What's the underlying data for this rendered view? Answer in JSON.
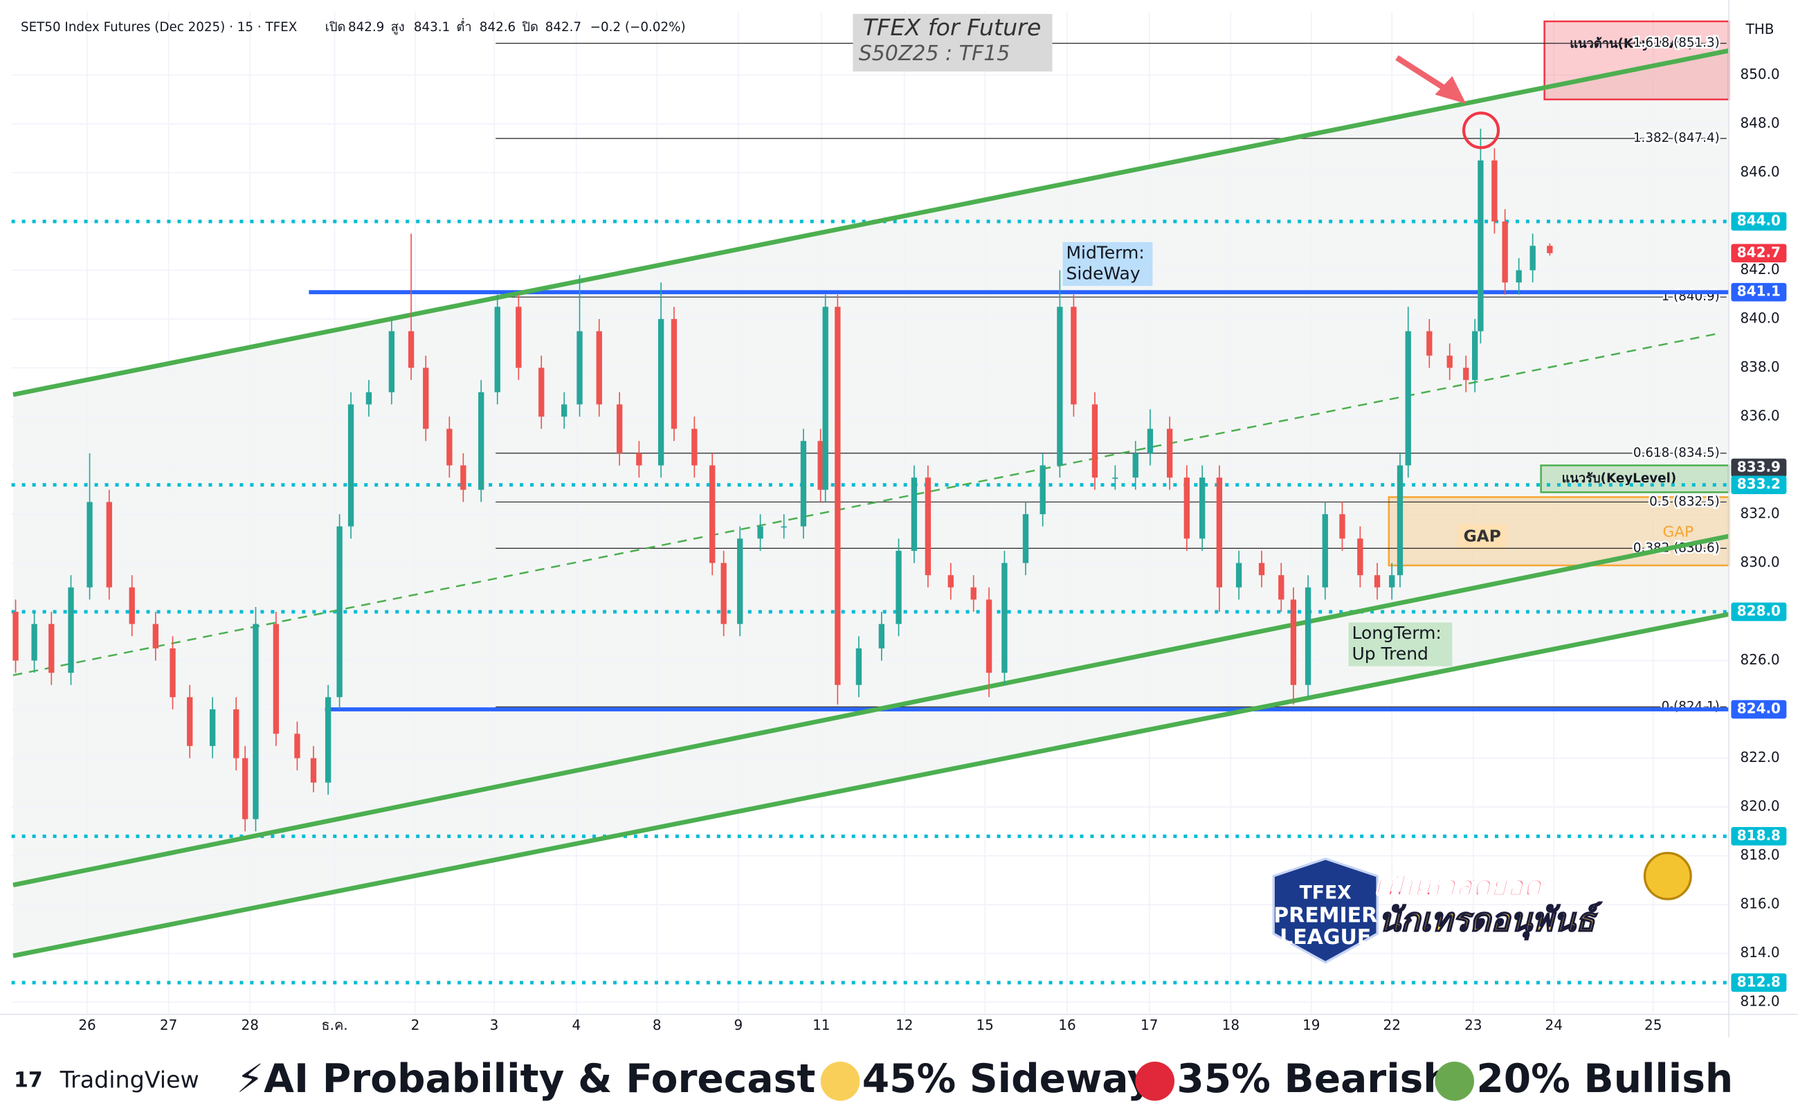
{
  "chart_data": {
    "type": "candlestick",
    "title": "TFEX for Future",
    "subtitle": "S50Z25 : TF15",
    "symbol": "SET50 Index Futures (Dec 2025) · 15 · TFEX",
    "ohlc_header": [
      {
        "label": "เปิด",
        "value": "842.9"
      },
      {
        "label": "สูง",
        "value": "843.1"
      },
      {
        "label": "ต่ำ",
        "value": "842.6"
      },
      {
        "label": "ปิด",
        "value": "842.7"
      }
    ],
    "change": "−0.2 (−0.02%)",
    "currency": "THB",
    "up_color": "#26a69a",
    "down_color": "#ef5350",
    "x": [
      -0.88,
      -0.65,
      -0.44,
      -0.2,
      0.03,
      0.27,
      0.55,
      0.84,
      1.05,
      1.26,
      1.54,
      1.83,
      1.94,
      2.07,
      2.32,
      2.58,
      2.78,
      2.96,
      3.1,
      3.24,
      3.46,
      3.74,
      3.98,
      4.16,
      4.45,
      4.62,
      4.84,
      5.04,
      5.3,
      5.58,
      5.86,
      6.05,
      6.29,
      6.54,
      6.78,
      7.05,
      7.21,
      7.46,
      7.68,
      7.82,
      8.02,
      8.27,
      8.56,
      8.8,
      9.01,
      9.07,
      9.22,
      9.48,
      9.76,
      9.97,
      10.16,
      10.33,
      10.61,
      10.89,
      11.08,
      11.27,
      11.53,
      11.74,
      11.95,
      12.12,
      12.38,
      12.63,
      12.88,
      13.06,
      13.3,
      13.51,
      13.7,
      13.91,
      14.15,
      14.43,
      14.67,
      14.82,
      15.0,
      15.21,
      15.42,
      15.64,
      15.85,
      16.03,
      16.13,
      16.23,
      16.49,
      16.74,
      16.94,
      17.05,
      17.12,
      17.29,
      17.42,
      17.59,
      17.76,
      17.97
    ],
    "open": [
      828.0,
      826.0,
      827.5,
      825.5,
      829.0,
      832.5,
      829.0,
      827.5,
      826.5,
      824.5,
      822.5,
      824.0,
      822.0,
      819.5,
      827.5,
      823.0,
      822.0,
      821.0,
      824.5,
      831.5,
      836.5,
      837.0,
      839.5,
      838.0,
      835.5,
      834.0,
      833.0,
      837.0,
      840.5,
      838.0,
      836.0,
      836.5,
      839.5,
      836.5,
      834.5,
      834.0,
      840.0,
      835.5,
      834.0,
      830.0,
      827.5,
      831.0,
      831.5,
      831.5,
      835.0,
      833.0,
      840.5,
      825.0,
      826.5,
      827.5,
      830.5,
      833.5,
      829.5,
      829.0,
      828.5,
      825.5,
      830.0,
      832.0,
      834.0,
      840.5,
      836.5,
      833.5,
      833.5,
      834.5,
      835.5,
      833.5,
      831.0,
      833.5,
      829.0,
      830.0,
      829.5,
      828.5,
      825.0,
      829.0,
      832.0,
      831.0,
      829.5,
      829.0,
      829.5,
      834.0,
      839.5,
      838.5,
      838.0,
      837.5,
      839.5,
      846.5,
      844.0,
      841.5,
      842.0,
      843.0
    ],
    "high": [
      828.5,
      828.0,
      828.0,
      829.5,
      834.5,
      833.0,
      829.5,
      828.0,
      827.0,
      825.0,
      824.5,
      824.5,
      822.5,
      828.2,
      828.0,
      823.5,
      822.5,
      825.0,
      832.0,
      837.0,
      837.5,
      840.0,
      843.5,
      838.5,
      836.0,
      834.5,
      837.5,
      841.0,
      841.0,
      838.5,
      837.0,
      841.8,
      840.0,
      837.0,
      835.0,
      841.5,
      840.5,
      836.0,
      834.5,
      830.5,
      831.5,
      832.0,
      832.0,
      835.5,
      835.5,
      841.0,
      841.0,
      827.0,
      828.0,
      831.0,
      834.0,
      834.0,
      830.0,
      829.5,
      829.0,
      830.5,
      832.5,
      834.5,
      842.0,
      841.0,
      837.0,
      834.0,
      835.0,
      836.3,
      836.0,
      834.0,
      834.0,
      834.0,
      830.5,
      830.5,
      830.0,
      829.0,
      829.5,
      832.5,
      832.5,
      831.5,
      830.0,
      830.0,
      834.5,
      840.5,
      840.0,
      839.0,
      838.5,
      840.0,
      847.8,
      847.0,
      844.5,
      842.5,
      843.5,
      843.1
    ],
    "low": [
      825.5,
      825.5,
      825.0,
      825.0,
      828.5,
      828.5,
      827.0,
      826.0,
      824.0,
      822.0,
      822.0,
      821.5,
      819.0,
      819.0,
      822.5,
      821.5,
      820.6,
      820.5,
      824.0,
      831.0,
      836.0,
      836.5,
      837.5,
      835.0,
      833.5,
      832.5,
      832.5,
      836.5,
      837.5,
      835.5,
      835.5,
      836.0,
      836.0,
      834.0,
      833.5,
      833.5,
      835.0,
      833.5,
      829.5,
      827.0,
      827.0,
      830.5,
      831.0,
      831.0,
      832.5,
      832.5,
      824.2,
      824.5,
      826.0,
      827.0,
      830.0,
      829.0,
      828.5,
      828.0,
      824.5,
      825.0,
      829.5,
      831.5,
      833.5,
      836.0,
      833.0,
      833.0,
      833.0,
      834.0,
      833.0,
      830.5,
      830.5,
      828.0,
      828.5,
      829.0,
      828.0,
      824.2,
      824.5,
      828.5,
      830.5,
      829.0,
      828.5,
      828.5,
      829.0,
      833.5,
      838.0,
      837.5,
      837.0,
      837.0,
      839.0,
      843.5,
      841.0,
      841.0,
      841.5,
      842.6
    ],
    "close": [
      826.0,
      827.5,
      825.5,
      829.0,
      832.5,
      829.0,
      827.5,
      826.5,
      824.5,
      822.5,
      824.0,
      822.0,
      819.5,
      827.5,
      823.0,
      822.0,
      821.0,
      824.5,
      831.5,
      836.5,
      837.0,
      839.5,
      838.0,
      835.5,
      834.0,
      833.0,
      837.0,
      840.5,
      838.0,
      836.0,
      836.5,
      839.5,
      836.5,
      834.5,
      834.0,
      840.0,
      835.5,
      834.0,
      830.0,
      827.5,
      831.0,
      831.5,
      831.5,
      835.0,
      833.0,
      840.5,
      825.0,
      826.5,
      827.5,
      830.5,
      833.5,
      829.5,
      829.0,
      828.5,
      825.5,
      830.0,
      832.0,
      834.0,
      840.5,
      836.5,
      833.5,
      833.5,
      834.5,
      835.5,
      833.5,
      831.0,
      833.5,
      829.0,
      830.0,
      829.5,
      828.5,
      825.0,
      829.0,
      832.0,
      831.0,
      829.5,
      829.0,
      829.5,
      834.0,
      839.5,
      838.5,
      838.0,
      837.5,
      839.5,
      846.5,
      844.0,
      841.5,
      842.0,
      843.0,
      842.7
    ],
    "xlim": [
      -0.93,
      20.17
    ],
    "xticks": [
      {
        "value": 0,
        "label": "26"
      },
      {
        "value": 1,
        "label": "27"
      },
      {
        "value": 2,
        "label": "28"
      },
      {
        "value": 3.04,
        "label": "ธ.ค."
      },
      {
        "value": 4.03,
        "label": "2"
      },
      {
        "value": 5.0,
        "label": "3"
      },
      {
        "value": 6.01,
        "label": "4"
      },
      {
        "value": 7.0,
        "label": "8"
      },
      {
        "value": 8.0,
        "label": "9"
      },
      {
        "value": 9.02,
        "label": "11"
      },
      {
        "value": 10.04,
        "label": "12"
      },
      {
        "value": 11.03,
        "label": "15"
      },
      {
        "value": 12.04,
        "label": "16"
      },
      {
        "value": 13.05,
        "label": "17"
      },
      {
        "value": 14.05,
        "label": "18"
      },
      {
        "value": 15.04,
        "label": "19"
      },
      {
        "value": 16.03,
        "label": "22"
      },
      {
        "value": 17.03,
        "label": "23"
      },
      {
        "value": 18.02,
        "label": "24"
      },
      {
        "value": 19.24,
        "label": "25"
      }
    ],
    "ylim": [
      811.5,
      852.6
    ],
    "yticks": [
      {
        "value": 812,
        "label": "812.0"
      },
      {
        "value": 814,
        "label": "814.0"
      },
      {
        "value": 816,
        "label": "816.0"
      },
      {
        "value": 818,
        "label": "818.0"
      },
      {
        "value": 820,
        "label": "820.0"
      },
      {
        "value": 822,
        "label": "822.0"
      },
      {
        "value": 824,
        "label": "824.0"
      },
      {
        "value": 826,
        "label": "826.0"
      },
      {
        "value": 828,
        "label": "828.0"
      },
      {
        "value": 830,
        "label": "830.0"
      },
      {
        "value": 832,
        "label": "832.0"
      },
      {
        "value": 834,
        "label": "834.0"
      },
      {
        "value": 836,
        "label": "836.0"
      },
      {
        "value": 838,
        "label": "838.0"
      },
      {
        "value": 840,
        "label": "840.0"
      },
      {
        "value": 842,
        "label": "842.0"
      },
      {
        "value": 844,
        "label": "844.0"
      },
      {
        "value": 846,
        "label": "846.0"
      },
      {
        "value": 848,
        "label": "848.0"
      },
      {
        "value": 850,
        "label": "850.0"
      }
    ],
    "fib_levels": [
      {
        "value": 851.3,
        "label": "1.618 (851.3)"
      },
      {
        "value": 847.4,
        "label": "1.382 (847.4)"
      },
      {
        "value": 840.9,
        "label": "1 (840.9)"
      },
      {
        "value": 834.5,
        "label": "0.618 (834.5)"
      },
      {
        "value": 832.5,
        "label": "0.5 (832.5)"
      },
      {
        "value": 830.6,
        "label": "0.382 (830.6)"
      },
      {
        "value": 824.1,
        "label": "0 (824.1)"
      }
    ],
    "key_lines": [
      841.1,
      824.0
    ],
    "dotted_levels": [
      844.0,
      833.2,
      828.0,
      818.8,
      812.8
    ],
    "trend_lines": [
      {
        "x": [
          -0.91,
          20.17
        ],
        "y": [
          836.9,
          851.0
        ],
        "style": "solid"
      },
      {
        "x": [
          -0.91,
          20.03
        ],
        "y": [
          825.4,
          839.4
        ],
        "style": "dashed"
      },
      {
        "x": [
          -0.91,
          20.17
        ],
        "y": [
          816.8,
          831.1
        ],
        "style": "solid"
      },
      {
        "x": [
          -0.91,
          20.17
        ],
        "y": [
          813.9,
          827.9
        ],
        "style": "solid"
      }
    ],
    "zones": [
      {
        "label": "แนวต้าน(KeyLevel)",
        "ylim": [
          849.0,
          852.2
        ],
        "color": "#f23645"
      },
      {
        "label": "แนวรับ(KeyLevel)",
        "ylim": [
          832.9,
          834.0
        ],
        "color": "#4caf50"
      },
      {
        "label": "GAP",
        "ylim": [
          829.9,
          832.7
        ],
        "color": "#f7a531"
      }
    ],
    "gap_note": "GAP",
    "annotations": [
      {
        "lines": [
          "MidTerm:",
          "SideWay"
        ],
        "color": "#bbdefb"
      },
      {
        "lines": [
          "LongTerm:",
          "Up Trend"
        ],
        "color": "#c8e6c9"
      }
    ],
    "price_tags": [
      {
        "value": 844.0,
        "label": "844.0",
        "color": "#00bcd4"
      },
      {
        "value": 842.7,
        "label": "842.7",
        "color": "#f23645"
      },
      {
        "value": 841.1,
        "label": "841.1",
        "color": "#2962ff"
      },
      {
        "value": 833.9,
        "label": "833.9",
        "color": "#363a45"
      },
      {
        "value": 833.2,
        "label": "833.2",
        "color": "#00bcd4"
      },
      {
        "value": 828.0,
        "label": "828.0",
        "color": "#00bcd4"
      },
      {
        "value": 824.0,
        "label": "824.0",
        "color": "#2962ff"
      },
      {
        "value": 818.8,
        "label": "818.8",
        "color": "#00bcd4"
      },
      {
        "value": 812.8,
        "label": "812.8",
        "color": "#00bcd4"
      }
    ]
  },
  "footer": {
    "brand": "TradingView",
    "heading": "⚡AI Probability & Forecast :",
    "forecast": [
      {
        "text": "45% Sideway",
        "color": "#f9cf5a"
      },
      {
        "text": "35% Bearish",
        "color": "#e0283a"
      },
      {
        "text": "20% Bullish",
        "color": "#6aa84f"
      }
    ]
  },
  "logo": {
    "lines": [
      "TFEX",
      "PREMIER",
      "LEAGUE"
    ],
    "slogan": [
      "เฟ้นหาสุดยอด",
      "นักเทรดอนุพันธ์"
    ]
  }
}
